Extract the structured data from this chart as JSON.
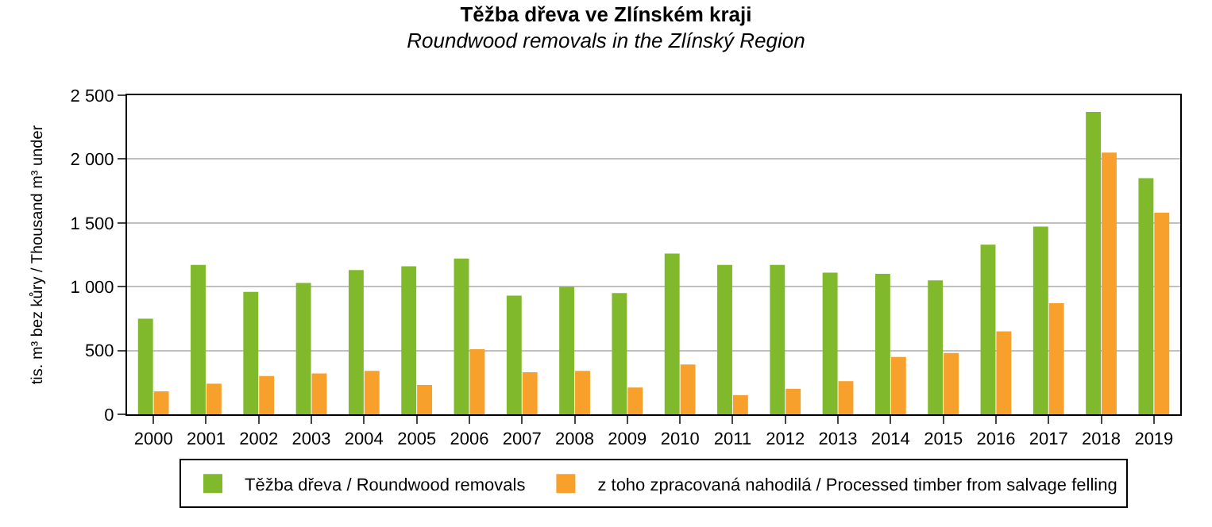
{
  "chart_data": {
    "type": "bar",
    "title": "Těžba dřeva ve Zlínském kraji",
    "subtitle": "Roundwood removals in the Zlínský Region",
    "ylabel": "tis. m³ bez kůry / Thousand m³ under",
    "categories": [
      "2000",
      "2001",
      "2002",
      "2003",
      "2004",
      "2005",
      "2006",
      "2007",
      "2008",
      "2009",
      "2010",
      "2011",
      "2012",
      "2013",
      "2014",
      "2015",
      "2016",
      "2017",
      "2018",
      "2019"
    ],
    "series": [
      {
        "name": "Těžba dřeva / Roundwood removals",
        "color": "#80ba2c",
        "values": [
          750,
          1170,
          960,
          1030,
          1130,
          1160,
          1220,
          930,
          1000,
          950,
          1260,
          1170,
          1170,
          1110,
          1100,
          1050,
          1330,
          1470,
          2370,
          1850
        ]
      },
      {
        "name": "z toho zpracovaná nahodilá / Processed timber from salvage felling",
        "color": "#f7a12c",
        "values": [
          180,
          240,
          300,
          320,
          340,
          230,
          510,
          330,
          340,
          210,
          390,
          150,
          200,
          260,
          450,
          480,
          650,
          870,
          2050,
          1580
        ]
      }
    ],
    "ylim": [
      0,
      2500
    ],
    "yticks": [
      {
        "value": 0,
        "label": "0"
      },
      {
        "value": 500,
        "label": "500"
      },
      {
        "value": 1000,
        "label": "1 000"
      },
      {
        "value": 1500,
        "label": "1 500"
      },
      {
        "value": 2000,
        "label": "2 000"
      },
      {
        "value": 2500,
        "label": "2 500"
      }
    ],
    "grid": "y",
    "legend": "bottom"
  }
}
